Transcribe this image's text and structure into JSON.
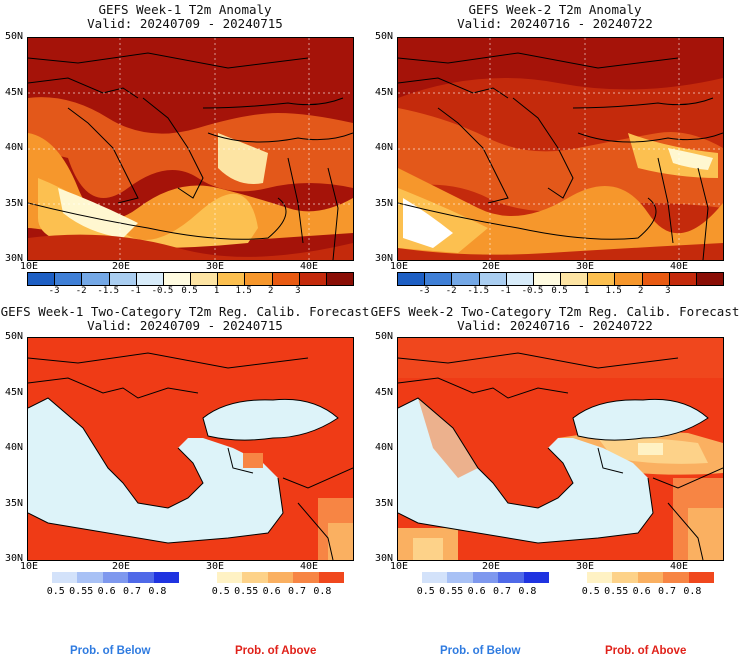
{
  "panels": [
    {
      "title1": "GEFS Week-1 T2m Anomaly",
      "title2": "Valid: 20240709 - 20240715"
    },
    {
      "title1": "GEFS Week-2 T2m Anomaly",
      "title2": "Valid: 20240716 - 20240722"
    },
    {
      "title1": "GEFS Week-1 Two-Category T2m Reg. Calib. Forecast",
      "title2": "Valid: 20240709 - 20240715"
    },
    {
      "title1": "GEFS Week-2 Two-Category T2m Reg. Calib. Forecast",
      "title2": "Valid: 20240716 - 20240722"
    }
  ],
  "lat_labels": [
    "50N",
    "45N",
    "40N",
    "35N",
    "30N"
  ],
  "lon_labels": [
    "10E",
    "20E",
    "30E",
    "40E"
  ],
  "anomaly_ticks": [
    "-3",
    "-2",
    "-1.5",
    "-1",
    "-0.5",
    "0.5",
    "1",
    "1.5",
    "2",
    "3"
  ],
  "anomaly_colors": [
    "#1d5fc4",
    "#3f7fd6",
    "#74a8e6",
    "#a9cdf0",
    "#d8ecfa",
    "#fffbe0",
    "#fde4a3",
    "#fcc050",
    "#f6972c",
    "#e85a12",
    "#c42a0c",
    "#8a0e06"
  ],
  "below_ticks": [
    "0.5",
    "0.55",
    "0.6",
    "0.7",
    "0.8"
  ],
  "below_colors": [
    "#d3e2fa",
    "#a8c1f5",
    "#7e98ee",
    "#4f69e8",
    "#1f33e0"
  ],
  "above_ticks": [
    "0.5",
    "0.55",
    "0.6",
    "0.7",
    "0.8"
  ],
  "above_colors": [
    "#fff2c4",
    "#fdd289",
    "#fab061",
    "#f78544",
    "#f0471d"
  ],
  "footer": {
    "below_label": "Prob. of Below",
    "above_label": "Prob. of Above",
    "below_color": "#2f7be0",
    "above_color": "#e0221a"
  },
  "map_colors": {
    "sea": "#ddf3f9",
    "prob_fill": "#ef3b16",
    "anom_hot": "#a51309",
    "anom_warm": "#e3581a"
  }
}
